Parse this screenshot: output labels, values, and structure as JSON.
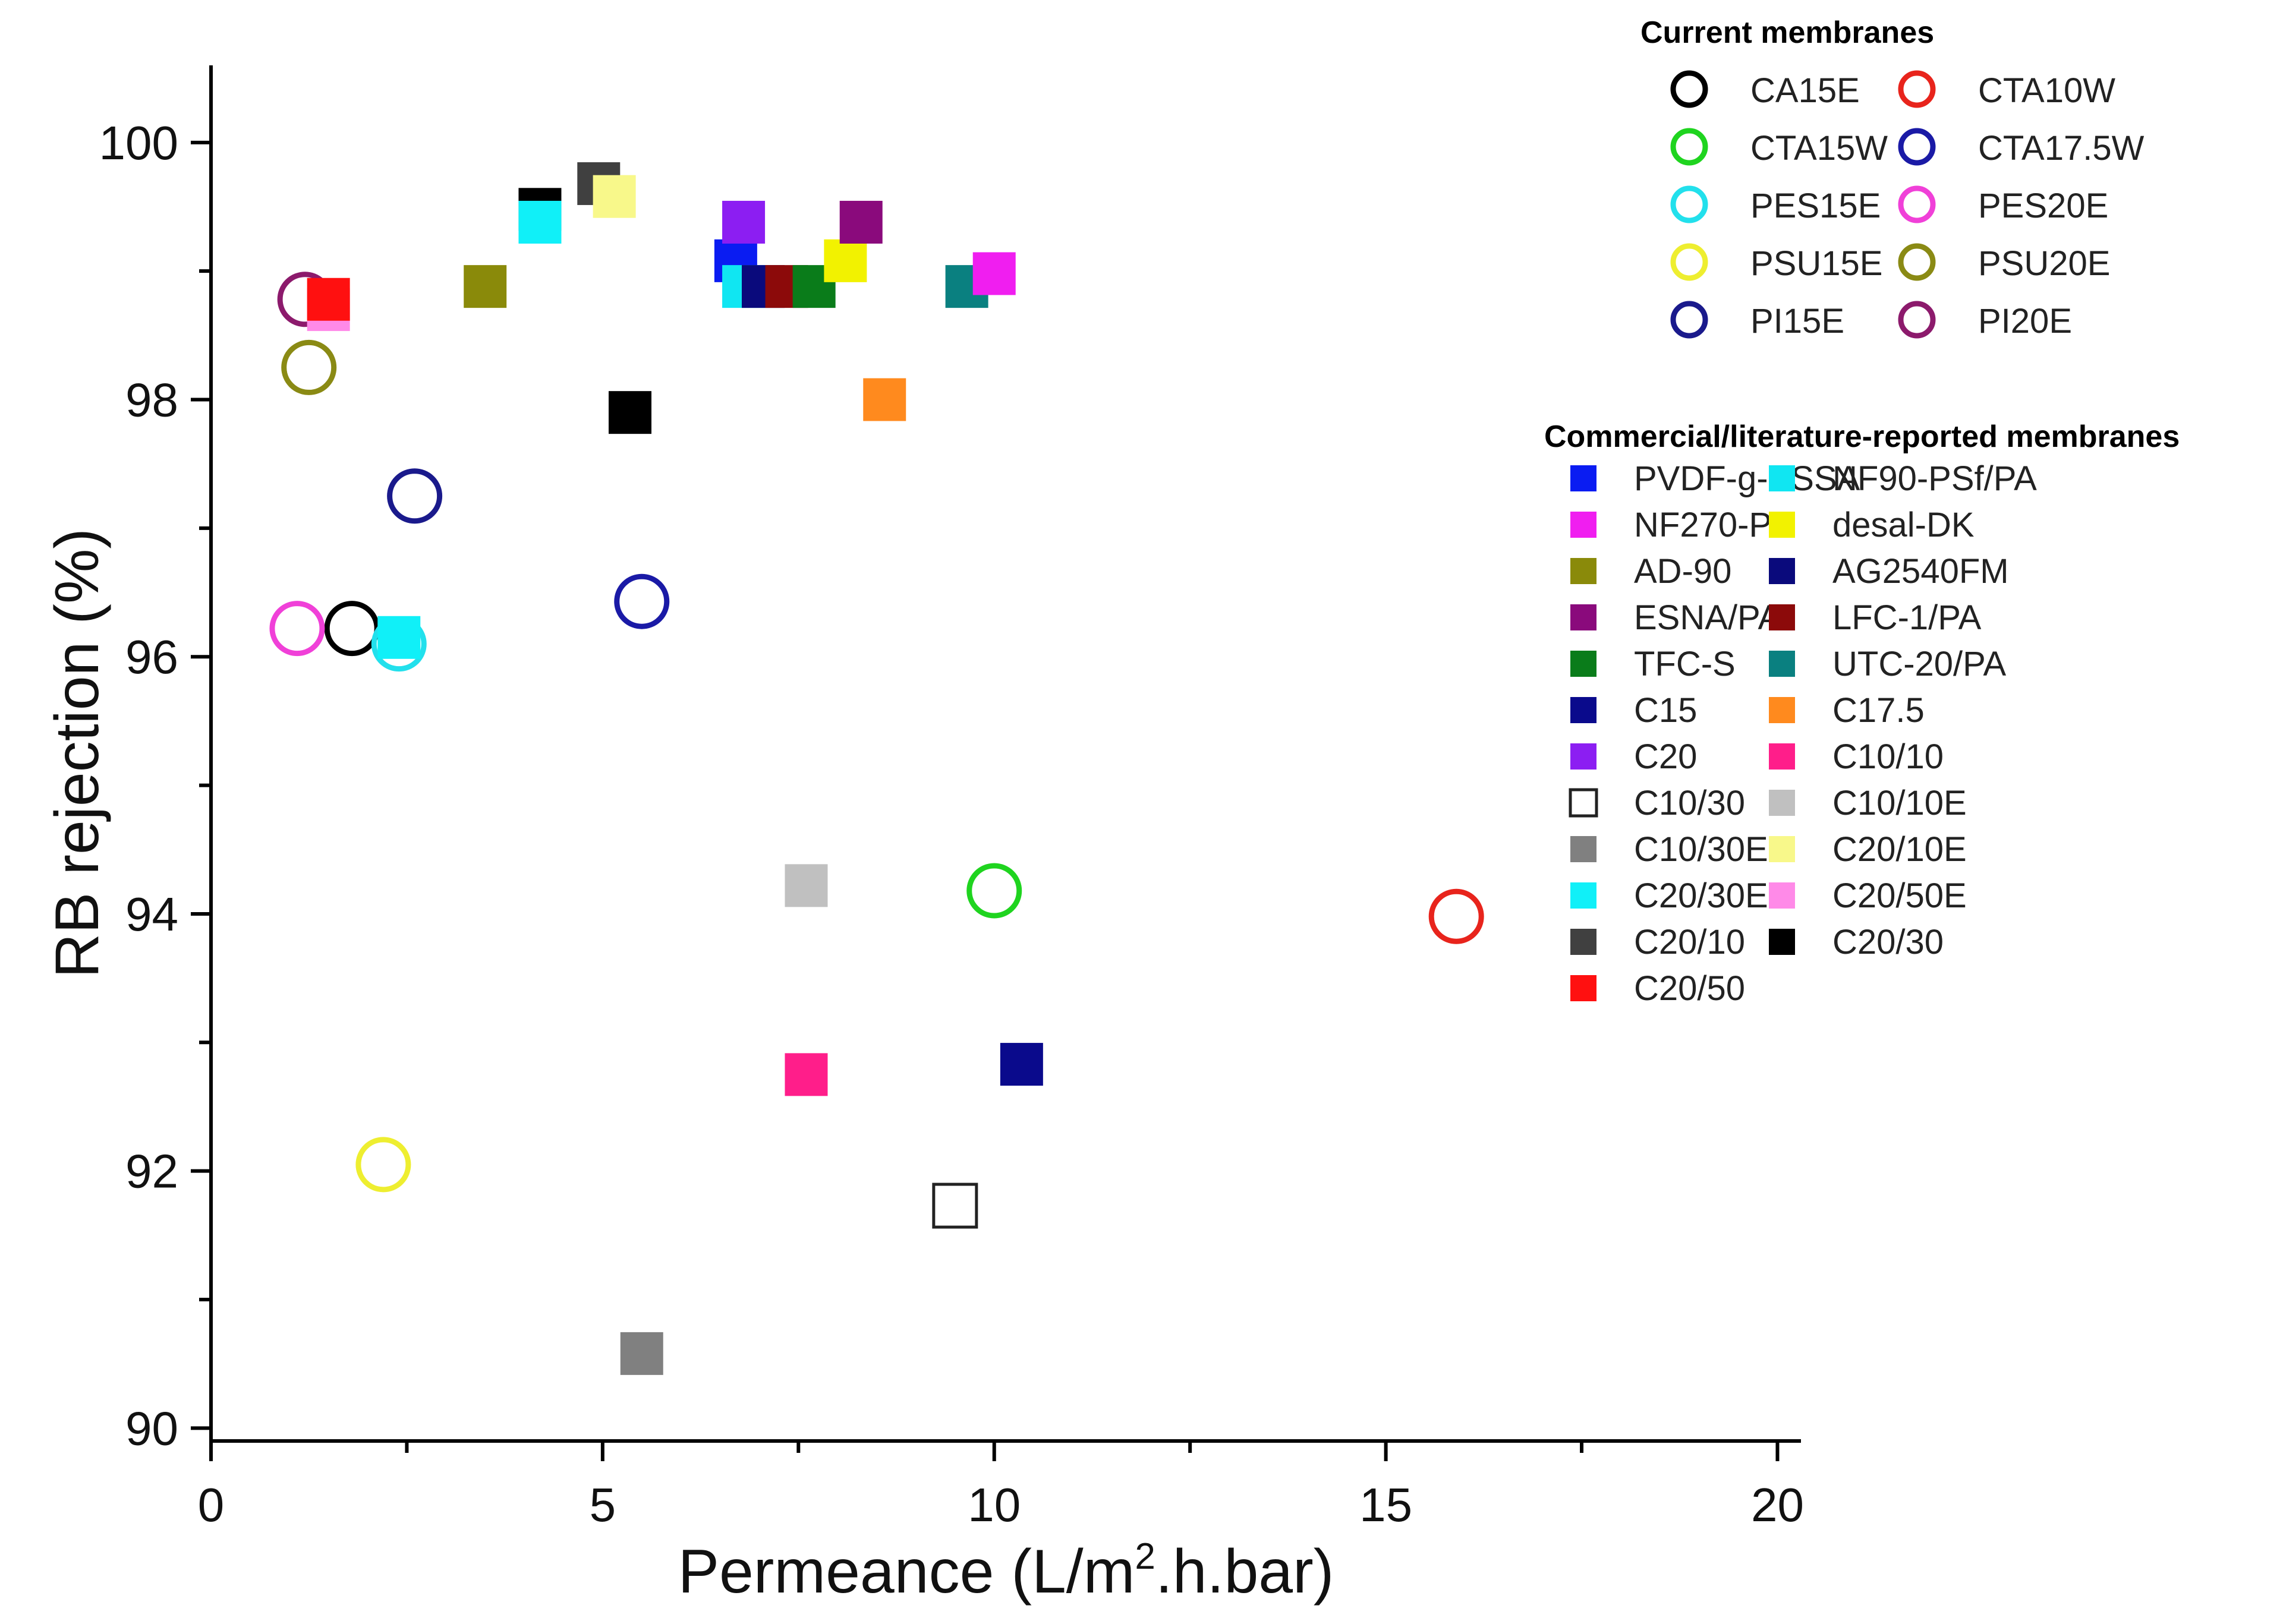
{
  "chart_data": {
    "type": "scatter",
    "xlabel_parts": [
      "Permeance (L/m",
      "2",
      ".h.bar)"
    ],
    "ylabel": "RB rejection (%)",
    "xlim": [
      0,
      20.3
    ],
    "ylim": [
      89.9,
      100.6
    ],
    "xticks": [
      0,
      5,
      10,
      15,
      20
    ],
    "yticks": [
      90,
      92,
      94,
      96,
      98,
      100
    ],
    "grid": false,
    "legend_position": "right",
    "legend_groups": [
      {
        "title": "Current membranes",
        "marker": "circle",
        "entries": [
          {
            "name": "CA15E",
            "color": "#000000"
          },
          {
            "name": "CTA10W",
            "color": "#e8241c"
          },
          {
            "name": "CTA15W",
            "color": "#1fd41f"
          },
          {
            "name": "CTA17.5W",
            "color": "#1a1aa6"
          },
          {
            "name": "PES15E",
            "color": "#22e0ec"
          },
          {
            "name": "PES20E",
            "color": "#f040d8"
          },
          {
            "name": "PSU15E",
            "color": "#eeee30"
          },
          {
            "name": "PSU20E",
            "color": "#8a8a14"
          },
          {
            "name": "PI15E",
            "color": "#1a1a8c"
          },
          {
            "name": "PI20E",
            "color": "#8c1a6c"
          }
        ]
      },
      {
        "title": "Commercial/literature-reported membranes",
        "marker": "square",
        "entries": [
          {
            "name": "PVDF-g-PSSA",
            "color": "#0a1cf2"
          },
          {
            "name": "NF90-PSf/PA",
            "color": "#10e6f2"
          },
          {
            "name": "NF270-PA",
            "color": "#f01ef0"
          },
          {
            "name": "desal-DK",
            "color": "#f2f200"
          },
          {
            "name": "AD-90",
            "color": "#8a8a0a"
          },
          {
            "name": "AG2540FM",
            "color": "#0a0a7c"
          },
          {
            "name": "ESNA/PA",
            "color": "#8a0a7c"
          },
          {
            "name": "LFC-1/PA",
            "color": "#8c0a0a"
          },
          {
            "name": "TFC-S",
            "color": "#0a7c1a"
          },
          {
            "name": "UTC-20/PA",
            "color": "#0a8080"
          },
          {
            "name": "C15",
            "color": "#0a0a8c"
          },
          {
            "name": "C17.5",
            "color": "#ff8a1e"
          },
          {
            "name": "C20",
            "color": "#8c1ef2"
          },
          {
            "name": "C10/10",
            "color": "#ff1e8a"
          },
          {
            "name": "C10/30",
            "color": "#ffffff",
            "stroke": "#222222"
          },
          {
            "name": "C10/10E",
            "color": "#c0c0c0"
          },
          {
            "name": "C10/30E",
            "color": "#808080"
          },
          {
            "name": "C20/10E",
            "color": "#f8f88a"
          },
          {
            "name": "C20/30E",
            "color": "#10f0f8"
          },
          {
            "name": "C20/50E",
            "color": "#ff8ae8"
          },
          {
            "name": "C20/10",
            "color": "#404040"
          },
          {
            "name": "C20/30",
            "color": "#000000"
          },
          {
            "name": "C20/50",
            "color": "#ff1010"
          }
        ]
      }
    ],
    "points": [
      {
        "series": "CA15E",
        "marker": "circle",
        "x": 1.8,
        "y": 96.22
      },
      {
        "series": "CTA10W",
        "marker": "circle",
        "x": 15.9,
        "y": 93.98
      },
      {
        "series": "CTA15W",
        "marker": "circle",
        "x": 10.0,
        "y": 94.18
      },
      {
        "series": "CTA17.5W",
        "marker": "circle",
        "x": 5.5,
        "y": 96.43
      },
      {
        "series": "PES15E",
        "marker": "circle",
        "x": 2.4,
        "y": 96.1
      },
      {
        "series": "PES20E",
        "marker": "circle",
        "x": 1.1,
        "y": 96.22
      },
      {
        "series": "PSU15E",
        "marker": "circle",
        "x": 2.2,
        "y": 92.05
      },
      {
        "series": "PSU20E",
        "marker": "circle",
        "x": 1.25,
        "y": 98.25
      },
      {
        "series": "PI15E",
        "marker": "circle",
        "x": 2.6,
        "y": 97.25
      },
      {
        "series": "PI20E",
        "marker": "circle",
        "x": 1.2,
        "y": 98.78
      },
      {
        "series": "C20/50E",
        "marker": "square",
        "x": 1.5,
        "y": 98.7
      },
      {
        "series": "C20/50",
        "marker": "square",
        "x": 1.5,
        "y": 98.78
      },
      {
        "series": "C20/30E",
        "marker": "square",
        "x": 2.4,
        "y": 96.15
      },
      {
        "series": "AD-90",
        "marker": "square",
        "x": 3.5,
        "y": 98.88
      },
      {
        "series": "C20/30",
        "marker": "square",
        "x": 4.2,
        "y": 99.48
      },
      {
        "series": "C20/30E",
        "marker": "square",
        "x": 4.2,
        "y": 99.38
      },
      {
        "series": "C20/10",
        "marker": "square",
        "x": 4.95,
        "y": 99.68
      },
      {
        "series": "C20/10E",
        "marker": "square",
        "x": 5.15,
        "y": 99.58
      },
      {
        "series": "C20/30",
        "marker": "square",
        "x": 5.35,
        "y": 97.9
      },
      {
        "series": "C10/30E",
        "marker": "square",
        "x": 5.5,
        "y": 90.58
      },
      {
        "series": "PVDF-g-PSSA",
        "marker": "square",
        "x": 6.7,
        "y": 99.08
      },
      {
        "series": "C20",
        "marker": "square",
        "x": 6.8,
        "y": 99.38
      },
      {
        "series": "NF90-PSf/PA",
        "marker": "square",
        "x": 6.8,
        "y": 98.88
      },
      {
        "series": "AG2540FM",
        "marker": "square",
        "x": 7.05,
        "y": 98.88
      },
      {
        "series": "LFC-1/PA",
        "marker": "square",
        "x": 7.35,
        "y": 98.88
      },
      {
        "series": "TFC-S",
        "marker": "square",
        "x": 7.7,
        "y": 98.88
      },
      {
        "series": "C10/10E",
        "marker": "square",
        "x": 7.6,
        "y": 94.22
      },
      {
        "series": "C10/10",
        "marker": "square",
        "x": 7.6,
        "y": 92.75
      },
      {
        "series": "desal-DK",
        "marker": "square",
        "x": 8.1,
        "y": 99.08
      },
      {
        "series": "ESNA/PA",
        "marker": "square",
        "x": 8.3,
        "y": 99.38
      },
      {
        "series": "C17.5",
        "marker": "square",
        "x": 8.6,
        "y": 98.0
      },
      {
        "series": "C10/30",
        "marker": "square",
        "x": 9.5,
        "y": 91.73
      },
      {
        "series": "UTC-20/PA",
        "marker": "square",
        "x": 9.65,
        "y": 98.88
      },
      {
        "series": "NF270-PA",
        "marker": "square",
        "x": 10.0,
        "y": 98.98
      },
      {
        "series": "C15",
        "marker": "square",
        "x": 10.35,
        "y": 92.83
      }
    ]
  }
}
